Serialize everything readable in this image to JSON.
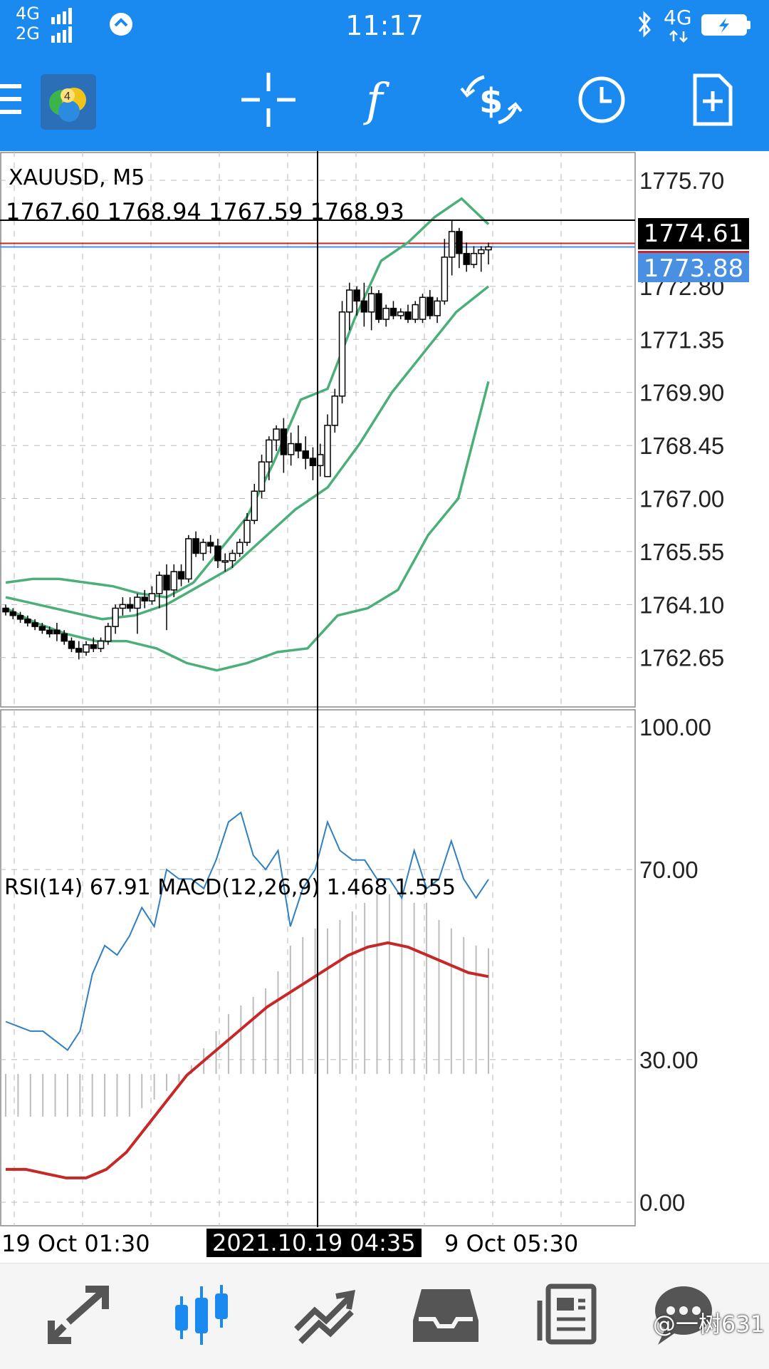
{
  "status": {
    "sim1": "4G",
    "sim2": "2G",
    "time": "11:17",
    "network": "4G"
  },
  "toolbar": {
    "icons": [
      "menu-icon",
      "metatrader-app-icon",
      "crosshair-icon",
      "indicators-icon",
      "dollar-cycle-icon",
      "period-clock-icon",
      "add-object-icon"
    ]
  },
  "chart": {
    "symbol_label": "XAUUSD, M5",
    "ohlc_label": "1767.60 1768.94 1767.59 1768.93",
    "indicator_label": "RSI(14) 67.91 MACD(12,26,9) 1.468 1.555",
    "x_label_left": "19 Oct 01:30",
    "crosshair_time": "2021.10.19 04:35",
    "x_label_right": "9 Oct 05:30",
    "crosshair_price": "1774.61",
    "current_price": "1773.88"
  },
  "chart_data": {
    "type": "candlestick",
    "symbol": "XAUUSD",
    "timeframe": "M5",
    "ylim": [
      1761.3,
      1776.5
    ],
    "y_ticks": [
      "1775.70",
      "1772.80",
      "1771.35",
      "1769.90",
      "1768.45",
      "1767.00",
      "1765.55",
      "1764.10",
      "1762.65"
    ],
    "indicator_ylim": [
      0,
      100
    ],
    "indicator_ticks": [
      "100.00",
      "70.00",
      "30.00",
      "0.00"
    ],
    "candles": [
      [
        1764.0,
        1764.1,
        1763.8,
        1763.9
      ],
      [
        1763.9,
        1764.0,
        1763.7,
        1763.8
      ],
      [
        1763.8,
        1763.9,
        1763.6,
        1763.7
      ],
      [
        1763.7,
        1763.8,
        1763.5,
        1763.6
      ],
      [
        1763.6,
        1763.7,
        1763.4,
        1763.5
      ],
      [
        1763.5,
        1763.6,
        1763.3,
        1763.4
      ],
      [
        1763.4,
        1763.5,
        1763.2,
        1763.3
      ],
      [
        1763.4,
        1763.6,
        1763.1,
        1763.3
      ],
      [
        1763.3,
        1763.4,
        1763.0,
        1763.1
      ],
      [
        1763.1,
        1763.2,
        1762.8,
        1762.9
      ],
      [
        1762.9,
        1763.1,
        1762.6,
        1762.8
      ],
      [
        1762.8,
        1763.1,
        1762.7,
        1763.0
      ],
      [
        1763.0,
        1763.2,
        1762.8,
        1762.9
      ],
      [
        1762.9,
        1763.2,
        1762.8,
        1763.1
      ],
      [
        1763.1,
        1763.6,
        1763.0,
        1763.5
      ],
      [
        1763.5,
        1764.1,
        1763.3,
        1764.0
      ],
      [
        1764.0,
        1764.3,
        1763.8,
        1764.1
      ],
      [
        1764.1,
        1764.3,
        1763.9,
        1764.0
      ],
      [
        1764.0,
        1764.4,
        1763.3,
        1764.3
      ],
      [
        1764.3,
        1764.5,
        1764.0,
        1764.2
      ],
      [
        1764.2,
        1764.6,
        1764.1,
        1764.4
      ],
      [
        1764.4,
        1765.0,
        1764.0,
        1764.9
      ],
      [
        1764.9,
        1765.2,
        1763.4,
        1764.5
      ],
      [
        1764.5,
        1765.2,
        1764.3,
        1765.0
      ],
      [
        1765.0,
        1765.2,
        1764.6,
        1764.8
      ],
      [
        1764.8,
        1766.0,
        1764.7,
        1765.9
      ],
      [
        1765.9,
        1766.1,
        1765.4,
        1765.5
      ],
      [
        1765.5,
        1765.9,
        1765.3,
        1765.8
      ],
      [
        1765.8,
        1766.0,
        1765.5,
        1765.7
      ],
      [
        1765.7,
        1765.9,
        1765.1,
        1765.3
      ],
      [
        1765.3,
        1765.5,
        1765.0,
        1765.3
      ],
      [
        1765.3,
        1765.6,
        1765.1,
        1765.5
      ],
      [
        1765.5,
        1765.9,
        1765.4,
        1765.8
      ],
      [
        1765.8,
        1766.6,
        1765.7,
        1766.4
      ],
      [
        1766.4,
        1767.4,
        1766.3,
        1767.2
      ],
      [
        1767.2,
        1768.2,
        1767.0,
        1768.0
      ],
      [
        1768.0,
        1768.7,
        1767.5,
        1768.6
      ],
      [
        1768.6,
        1769.0,
        1768.3,
        1768.9
      ],
      [
        1768.9,
        1769.2,
        1767.7,
        1768.2
      ],
      [
        1768.2,
        1768.8,
        1767.9,
        1768.5
      ],
      [
        1768.5,
        1769.0,
        1768.1,
        1768.3
      ],
      [
        1768.3,
        1768.7,
        1767.8,
        1768.1
      ],
      [
        1768.1,
        1768.4,
        1767.5,
        1767.9
      ],
      [
        1767.9,
        1768.5,
        1767.6,
        1768.2
      ],
      [
        1767.6,
        1769.3,
        1767.6,
        1769.0
      ],
      [
        1769.0,
        1770.0,
        1768.8,
        1769.8
      ],
      [
        1769.8,
        1772.4,
        1769.6,
        1772.1
      ],
      [
        1772.1,
        1772.9,
        1771.6,
        1772.7
      ],
      [
        1772.7,
        1772.8,
        1772.0,
        1772.4
      ],
      [
        1772.4,
        1772.9,
        1771.7,
        1772.1
      ],
      [
        1772.1,
        1772.8,
        1771.6,
        1772.6
      ],
      [
        1772.6,
        1772.7,
        1771.8,
        1771.9
      ],
      [
        1771.9,
        1772.3,
        1771.7,
        1772.2
      ],
      [
        1772.2,
        1772.4,
        1771.9,
        1772.0
      ],
      [
        1772.0,
        1772.2,
        1771.9,
        1772.1
      ],
      [
        1772.1,
        1772.3,
        1771.8,
        1771.9
      ],
      [
        1771.9,
        1772.4,
        1771.8,
        1772.3
      ],
      [
        1771.9,
        1772.6,
        1771.8,
        1772.5
      ],
      [
        1772.5,
        1772.7,
        1771.9,
        1772.0
      ],
      [
        1772.0,
        1772.5,
        1771.8,
        1772.4
      ],
      [
        1772.4,
        1774.1,
        1772.3,
        1773.6
      ],
      [
        1773.6,
        1774.6,
        1773.1,
        1774.3
      ],
      [
        1774.3,
        1774.4,
        1773.3,
        1773.7
      ],
      [
        1773.7,
        1774.0,
        1773.2,
        1773.4
      ],
      [
        1773.4,
        1773.9,
        1773.3,
        1773.7
      ],
      [
        1773.7,
        1773.9,
        1773.2,
        1773.8
      ],
      [
        1773.8,
        1774.0,
        1773.4,
        1773.88
      ]
    ],
    "bollinger_upper": [
      1764.7,
      1764.8,
      1764.8,
      1764.7,
      1764.6,
      1764.4,
      1764.3,
      1764.7,
      1765.6,
      1766.5,
      1768.0,
      1769.7,
      1770.0,
      1771.9,
      1773.5,
      1774.0,
      1774.7,
      1775.2,
      1774.5
    ],
    "bollinger_middle": [
      1764.3,
      1764.1,
      1763.9,
      1763.7,
      1763.8,
      1764.1,
      1764.6,
      1765.1,
      1765.9,
      1766.7,
      1767.3,
      1768.5,
      1769.9,
      1771.0,
      1772.1,
      1772.8
    ],
    "bollinger_lower": [
      1764.0,
      1763.6,
      1763.3,
      1763.1,
      1763.1,
      1762.9,
      1762.5,
      1762.3,
      1762.5,
      1762.8,
      1762.9,
      1763.8,
      1764.0,
      1764.5,
      1766.0,
      1767.0,
      1770.2
    ],
    "rsi": [
      38,
      37,
      36,
      36,
      34,
      32,
      36,
      48,
      54,
      52,
      56,
      62,
      58,
      70,
      68,
      68,
      66,
      72,
      80,
      82,
      73,
      70,
      74,
      58,
      66,
      70,
      80,
      74,
      72,
      72,
      68,
      68,
      64,
      74,
      66,
      68,
      76,
      68,
      64,
      67.91
    ],
    "macd_hist": [
      -0.5,
      -0.5,
      -0.5,
      -0.5,
      -0.5,
      -0.5,
      -0.5,
      -0.5,
      -0.5,
      -0.5,
      -0.5,
      -0.4,
      -0.3,
      -0.2,
      -0.1,
      0.1,
      0.3,
      0.5,
      0.7,
      0.8,
      0.9,
      1.0,
      1.2,
      1.5,
      1.6,
      1.7,
      1.7,
      1.8,
      1.9,
      2.0,
      2.1,
      2.1,
      2.1,
      2.0,
      2.0,
      1.8,
      1.7,
      1.6,
      1.5,
      1.468
    ],
    "macd_signal": [
      -0.7,
      -0.7,
      -0.75,
      -0.8,
      -0.8,
      -0.7,
      -0.5,
      -0.2,
      0.1,
      0.4,
      0.6,
      0.8,
      1.0,
      1.2,
      1.35,
      1.5,
      1.65,
      1.8,
      1.9,
      1.95,
      1.9,
      1.8,
      1.7,
      1.6,
      1.555
    ]
  },
  "nav": {
    "items": [
      "quotes-icon",
      "chart-icon",
      "trade-icon",
      "history-icon",
      "news-icon",
      "messages-icon"
    ]
  },
  "watermark": "@一树631"
}
